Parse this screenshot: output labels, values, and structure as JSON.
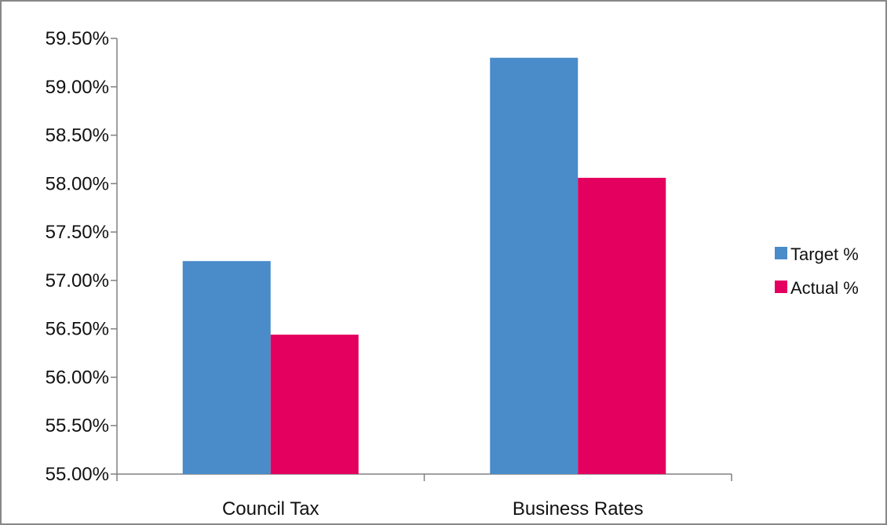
{
  "chart_data": {
    "type": "bar",
    "categories": [
      "Council Tax",
      "Business Rates"
    ],
    "series": [
      {
        "name": "Target %",
        "values": [
          57.2,
          59.3
        ],
        "color": "#4a8bc9"
      },
      {
        "name": "Actual %",
        "values": [
          56.44,
          58.06
        ],
        "color": "#e4005e"
      }
    ],
    "title": "",
    "xlabel": "",
    "ylabel": "",
    "ylim": [
      55.0,
      59.5
    ],
    "yticks": [
      "55.00%",
      "55.50%",
      "56.00%",
      "56.50%",
      "57.00%",
      "57.50%",
      "58.00%",
      "58.50%",
      "59.00%",
      "59.50%"
    ],
    "grid": false,
    "legend_position": "right"
  }
}
